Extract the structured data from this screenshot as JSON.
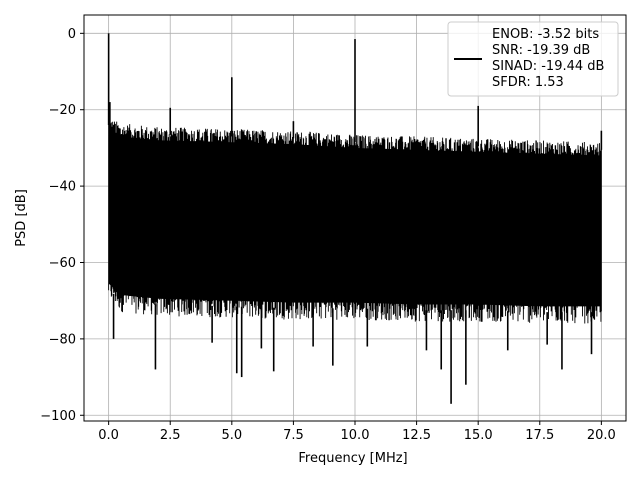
{
  "chart_data": {
    "type": "line",
    "xlabel": "Frequency [MHz]",
    "ylabel": "PSD [dB]",
    "xlim": [
      -1.0,
      21.0
    ],
    "ylim": [
      -101.5,
      4.8
    ],
    "grid": true,
    "legend_placement": "top-right",
    "x_ticks": [
      "0.0",
      "2.5",
      "5.0",
      "7.5",
      "10.0",
      "12.5",
      "15.0",
      "17.5",
      "20.0"
    ],
    "x_tick_values": [
      0,
      2.5,
      5,
      7.5,
      10,
      12.5,
      15,
      17.5,
      20
    ],
    "y_ticks": [
      "0",
      "−20",
      "−40",
      "−60",
      "−80",
      "−100"
    ],
    "y_tick_values": [
      0,
      -20,
      -40,
      -60,
      -80,
      -100
    ],
    "series": [
      {
        "legend_lines": [
          "ENOB: -3.52 bits",
          "SNR: -19.39 dB",
          "SINAD: -19.44 dB",
          "SFDR: 1.53"
        ],
        "color": "#000000",
        "noise_band": {
          "x": [
            0.0,
            0.5,
            2.0,
            5.0,
            7.5,
            10.0,
            12.5,
            15.0,
            17.5,
            20.0
          ],
          "upper": [
            -24,
            -25.5,
            -26.5,
            -27,
            -27.5,
            -28.5,
            -29,
            -29.5,
            -30,
            -30.5
          ],
          "lower": [
            -67,
            -70,
            -71,
            -71.5,
            -72,
            -72,
            -72.5,
            -72.5,
            -73,
            -73
          ]
        },
        "spikes": [
          {
            "x": 0.0,
            "y": 0.0
          },
          {
            "x": 0.05,
            "y": -18.0
          },
          {
            "x": 2.5,
            "y": -19.5
          },
          {
            "x": 5.0,
            "y": -11.5
          },
          {
            "x": 7.5,
            "y": -23.0
          },
          {
            "x": 10.0,
            "y": -1.5
          },
          {
            "x": 15.0,
            "y": -19.0
          },
          {
            "x": 20.0,
            "y": -25.5
          }
        ],
        "dips": [
          {
            "x": 0.2,
            "y": -80.0
          },
          {
            "x": 1.9,
            "y": -88.0
          },
          {
            "x": 4.2,
            "y": -81.0
          },
          {
            "x": 5.2,
            "y": -89.0
          },
          {
            "x": 5.4,
            "y": -90.0
          },
          {
            "x": 6.2,
            "y": -82.5
          },
          {
            "x": 6.7,
            "y": -88.5
          },
          {
            "x": 8.3,
            "y": -82.0
          },
          {
            "x": 9.1,
            "y": -87.0
          },
          {
            "x": 10.5,
            "y": -82.0
          },
          {
            "x": 12.9,
            "y": -83.0
          },
          {
            "x": 13.5,
            "y": -88.0
          },
          {
            "x": 13.9,
            "y": -97.0
          },
          {
            "x": 14.5,
            "y": -92.0
          },
          {
            "x": 16.2,
            "y": -83.0
          },
          {
            "x": 17.8,
            "y": -81.5
          },
          {
            "x": 18.4,
            "y": -88.0
          },
          {
            "x": 19.6,
            "y": -84.0
          }
        ]
      }
    ]
  }
}
